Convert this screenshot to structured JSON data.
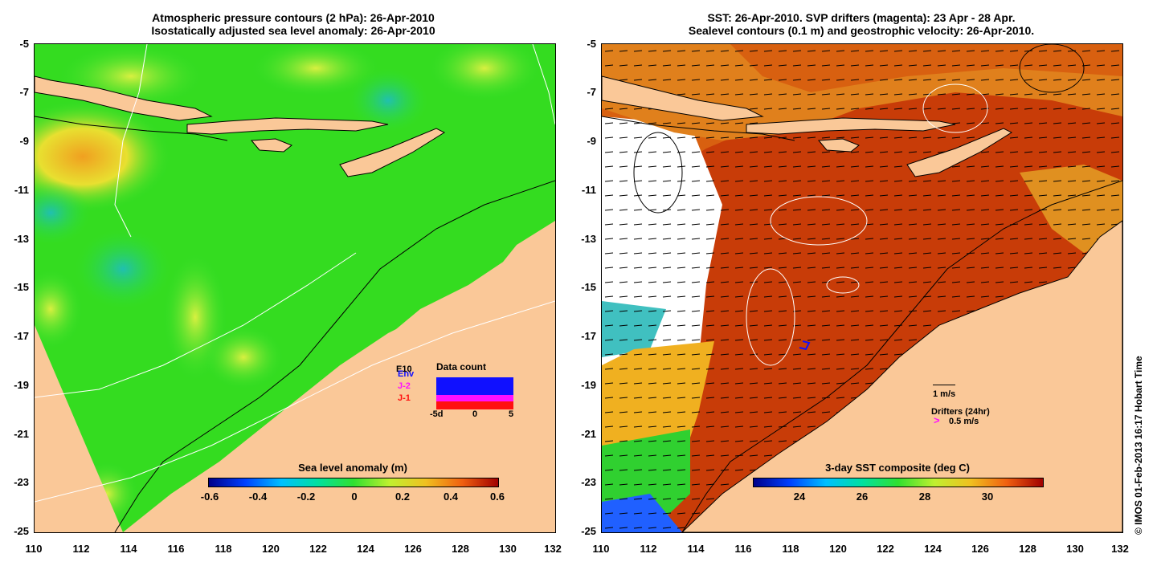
{
  "left_panel": {
    "title_line1": "Atmospheric pressure contours (2 hPa): 26-Apr-2010",
    "title_line2": "Isostatically adjusted sea level anomaly: 26-Apr-2010",
    "colorbar_title": "Sea level anomaly (m)",
    "colorbar_ticks": [
      "-0.6",
      "-0.4",
      "-0.2",
      "0",
      "0.2",
      "0.4",
      "0.6"
    ],
    "inset": {
      "title": "Data count",
      "labels": [
        "E10",
        "Env",
        "J-2",
        "J-1"
      ],
      "x_ticks": [
        "-5d",
        "0",
        "5"
      ]
    }
  },
  "right_panel": {
    "title_line1": "SST: 26-Apr-2010. SVP drifters (magenta): 23 Apr - 28 Apr.",
    "title_line2": "Sealevel contours (0.1 m) and geostrophic velocity: 26-Apr-2010.",
    "colorbar_title": "3-day SST composite (deg C)",
    "colorbar_ticks": [
      "24",
      "26",
      "28",
      "30"
    ],
    "velocity_scale_label": "1 m/s",
    "drifters_label": "Drifters (24hr)",
    "drifters_scale": "0.5 m/s"
  },
  "axes": {
    "y_ticks": [
      "-5",
      "-7",
      "-9",
      "-11",
      "-13",
      "-15",
      "-17",
      "-19",
      "-21",
      "-23",
      "-25"
    ],
    "x_ticks": [
      "110",
      "112",
      "114",
      "116",
      "118",
      "120",
      "122",
      "124",
      "126",
      "128",
      "130",
      "132"
    ]
  },
  "credit": "© IMOS 01-Feb-2013 16:17 Hobart Time"
}
